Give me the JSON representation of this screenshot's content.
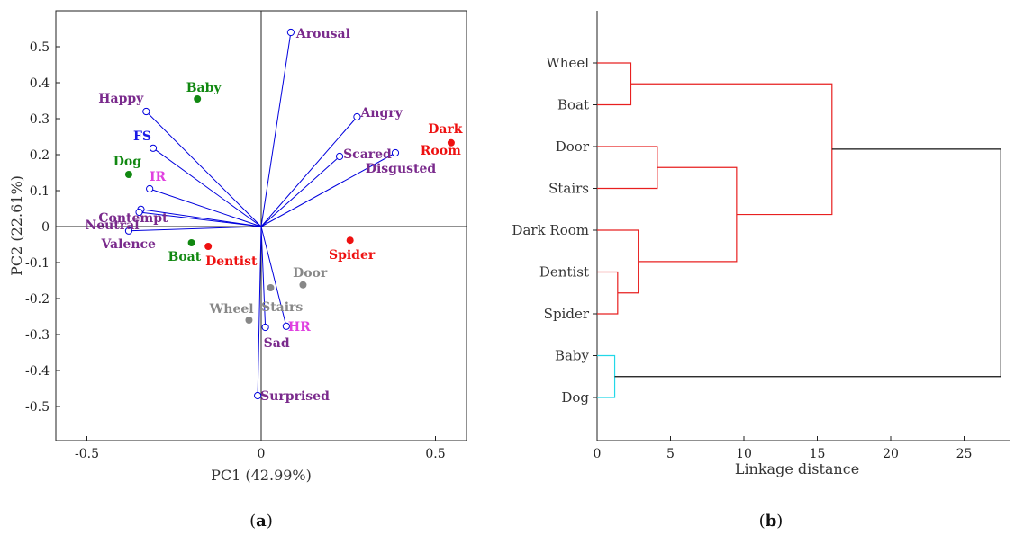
{
  "figure": {
    "panel_a_label": "(a)",
    "panel_a_letter": "a",
    "panel_b_label": "(b)",
    "panel_b_letter": "b"
  },
  "chart_data": [
    {
      "type": "scatter",
      "xlabel": "PC1 (42.99%)",
      "ylabel": "PC2 (22.61%)",
      "xlim": [
        -0.59,
        0.59
      ],
      "ylim": [
        -0.6,
        0.59
      ],
      "xticks": [
        -0.5,
        0,
        0.5
      ],
      "xtick_labels": [
        "-0.5",
        "0",
        "0.5"
      ],
      "yticks": [
        0.5,
        0.4,
        0.3,
        0.2,
        0.1,
        0,
        -0.1,
        -0.2,
        -0.3,
        -0.4,
        -0.5
      ],
      "ytick_labels": [
        "0.5",
        "0.4",
        "0.3",
        "0.2",
        "0.1",
        "0",
        "-0.1",
        "-0.2",
        "-0.3",
        "-0.4",
        "-0.5"
      ],
      "grid": false,
      "loadings_color": "#0000dd",
      "loadings": [
        {
          "name": "Arousal",
          "x": 0.085,
          "y": 0.54,
          "color": "#7a2a8c",
          "anchor": "start"
        },
        {
          "name": "Angry",
          "x": 0.275,
          "y": 0.305,
          "color": "#7a2a8c",
          "anchor": "start"
        },
        {
          "name": "Scared",
          "x": 0.225,
          "y": 0.195,
          "color": "#7a2a8c",
          "anchor": "start"
        },
        {
          "name": "Disgusted",
          "x": 0.385,
          "y": 0.205,
          "color": "#7a2a8c",
          "anchor": "middle"
        },
        {
          "name": "Happy",
          "x": -0.33,
          "y": 0.32,
          "color": "#7a2a8c",
          "anchor": "end"
        },
        {
          "name": "FS",
          "x": -0.31,
          "y": 0.218,
          "color": "#1a1ae6",
          "anchor": "end"
        },
        {
          "name": "IR",
          "x": -0.32,
          "y": 0.105,
          "color": "#e040e0",
          "anchor": "end"
        },
        {
          "name": "Contempt",
          "x": -0.345,
          "y": 0.048,
          "color": "#7a2a8c",
          "anchor": "end"
        },
        {
          "name": "Neutral",
          "x": -0.35,
          "y": 0.04,
          "color": "#7a2a8c",
          "anchor": "end"
        },
        {
          "name": "Valence",
          "x": -0.38,
          "y": -0.012,
          "color": "#7a2a8c",
          "anchor": "end"
        },
        {
          "name": "Sad",
          "x": 0.012,
          "y": -0.28,
          "color": "#7a2a8c",
          "anchor": "start"
        },
        {
          "name": "HR",
          "x": 0.072,
          "y": -0.277,
          "color": "#e040e0",
          "anchor": "start"
        },
        {
          "name": "Surprised",
          "x": -0.01,
          "y": -0.47,
          "color": "#7a2a8c",
          "anchor": "start"
        }
      ],
      "points": [
        {
          "name": "Baby",
          "x": -0.183,
          "y": 0.355,
          "color": "#118811",
          "group": "green"
        },
        {
          "name": "Dog",
          "x": -0.38,
          "y": 0.145,
          "color": "#118811",
          "group": "green"
        },
        {
          "name": "Boat",
          "x": -0.2,
          "y": -0.045,
          "color": "#118811",
          "group": "green"
        },
        {
          "name": "Dentist",
          "x": -0.152,
          "y": -0.055,
          "color": "#ee1111",
          "group": "red"
        },
        {
          "name": "Spider",
          "x": 0.255,
          "y": -0.038,
          "color": "#ee1111",
          "group": "red"
        },
        {
          "name": "Dark Room",
          "x": 0.545,
          "y": 0.233,
          "color": "#ee1111",
          "group": "red"
        },
        {
          "name": "Door",
          "x": 0.12,
          "y": -0.162,
          "color": "#888888",
          "group": "gray"
        },
        {
          "name": "Stairs",
          "x": 0.027,
          "y": -0.17,
          "color": "#888888",
          "group": "gray"
        },
        {
          "name": "Wheel",
          "x": -0.035,
          "y": -0.26,
          "color": "#888888",
          "group": "gray"
        }
      ],
      "point_labels": [
        {
          "text": "Baby",
          "color": "#118811"
        },
        {
          "text": "Dog",
          "color": "#118811"
        },
        {
          "text": "Boat",
          "color": "#118811"
        },
        {
          "text": "Dentist",
          "color": "#ee1111"
        },
        {
          "text": "Spider",
          "color": "#ee1111"
        },
        {
          "text": "Dark",
          "color": "#ee1111"
        },
        {
          "text": "Room",
          "color": "#ee1111"
        },
        {
          "text": "Door",
          "color": "#888888"
        },
        {
          "text": "Stairs",
          "color": "#888888"
        },
        {
          "text": "Wheel",
          "color": "#888888"
        }
      ]
    },
    {
      "type": "dendrogram",
      "xlabel": "Linkage distance",
      "xlim": [
        0,
        28
      ],
      "xticks": [
        0,
        5,
        10,
        15,
        20,
        25
      ],
      "xtick_labels": [
        "0",
        "5",
        "10",
        "15",
        "20",
        "25"
      ],
      "leaves": [
        "Wheel",
        "Boat",
        "Door",
        "Stairs",
        "Dark Room",
        "Dentist",
        "Spider",
        "Baby",
        "Dog"
      ],
      "links": [
        {
          "left": "Wheel",
          "right": "Boat",
          "height": 2.3,
          "color": "#e82020"
        },
        {
          "left": "Door",
          "right": "Stairs",
          "height": 4.1,
          "color": "#e82020"
        },
        {
          "left": "Dentist",
          "right": "Spider",
          "height": 1.4,
          "color": "#e82020"
        },
        {
          "left": "Dark Room",
          "right": "Dentist+Spider",
          "height": 2.8,
          "color": "#e82020"
        },
        {
          "left": "Door+Stairs",
          "right": "Dark Room+Dentist+Spider",
          "height": 9.5,
          "color": "#e82020"
        },
        {
          "left": "Wheel+Boat",
          "right": "Door…Spider",
          "height": 16.0,
          "color": "#e82020"
        },
        {
          "left": "Baby",
          "right": "Dog",
          "height": 1.2,
          "color": "#22d8e8"
        },
        {
          "left": "Wheel…Spider",
          "right": "Baby+Dog",
          "height": 27.5,
          "color": "#111111"
        }
      ]
    }
  ]
}
